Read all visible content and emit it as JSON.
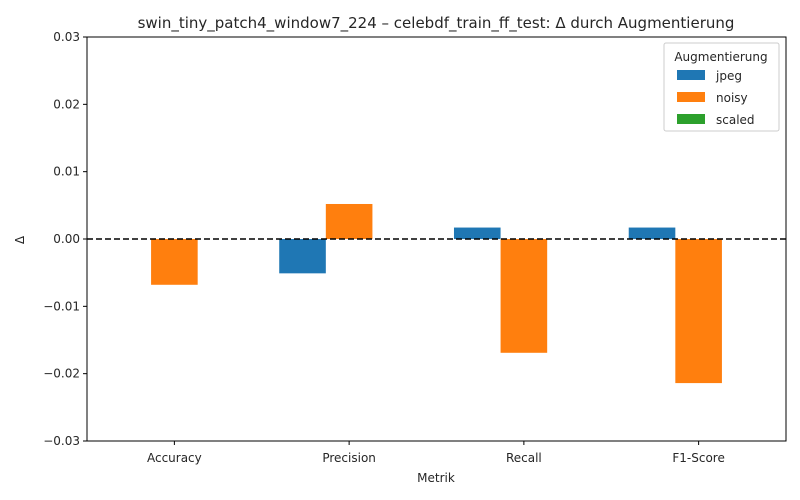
{
  "chart_data": {
    "type": "bar",
    "title": "swin_tiny_patch4_window7_224 – celebdf_train_ff_test: Δ durch Augmentierung",
    "xlabel": "Metrik",
    "ylabel": "Δ",
    "categories": [
      "Accuracy",
      "Precision",
      "Recall",
      "F1-Score"
    ],
    "ylim": [
      -0.03,
      0.03
    ],
    "yticks": [
      -0.03,
      -0.02,
      -0.01,
      0.0,
      0.01,
      0.02,
      0.03
    ],
    "ytick_labels": [
      "−0.03",
      "−0.02",
      "−0.01",
      "0.00",
      "0.01",
      "0.02",
      "0.03"
    ],
    "reference_line": {
      "y": 0,
      "style": "dashed",
      "color": "#000000"
    },
    "legend": {
      "title": "Augmentierung",
      "placement": "top-right"
    },
    "grid": false,
    "series": [
      {
        "name": "jpeg",
        "color": "#1f77b4",
        "values": [
          0.0,
          -0.0051,
          0.0017,
          0.0017
        ]
      },
      {
        "name": "noisy",
        "color": "#ff7f0e",
        "values": [
          -0.0068,
          0.0052,
          -0.0169,
          -0.0214
        ]
      },
      {
        "name": "scaled",
        "color": "#2ca02c",
        "values": [
          0.0,
          0.0,
          0.0,
          0.0
        ]
      }
    ]
  }
}
